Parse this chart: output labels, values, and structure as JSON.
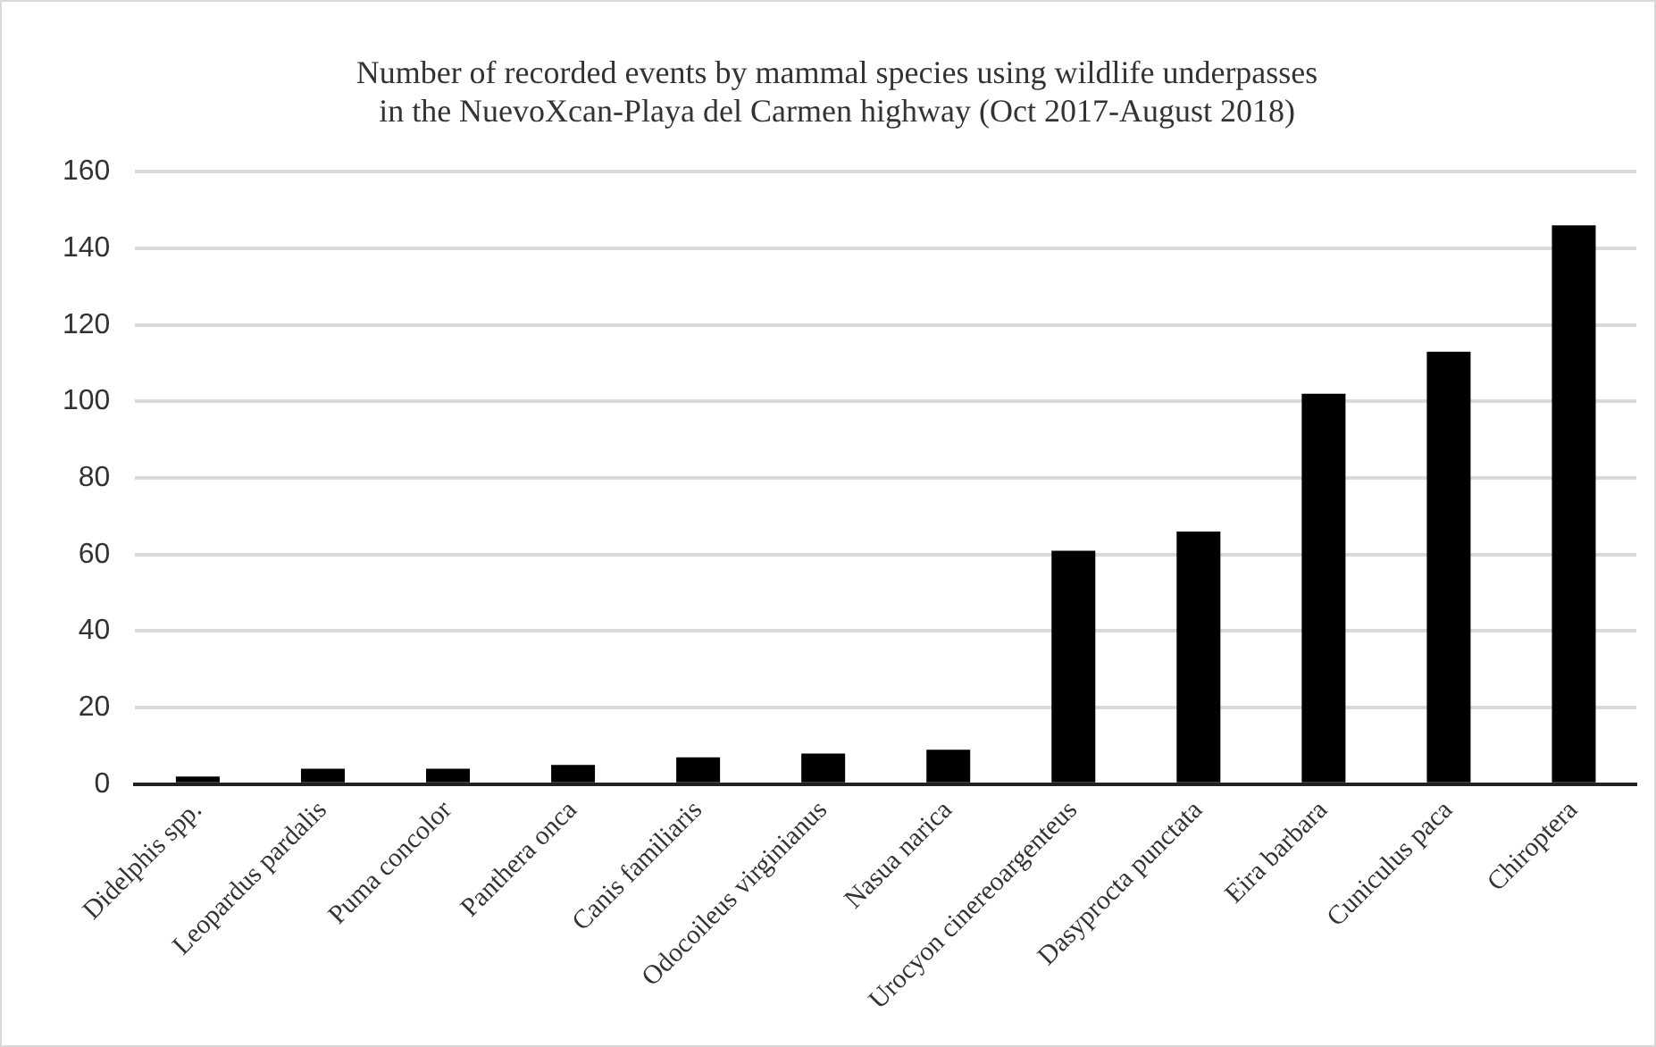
{
  "chart_data": {
    "type": "bar",
    "title": "Number of recorded events by mammal species using wildlife underpasses\nin the NuevoXcan-Playa del Carmen highway (Oct 2017-August 2018)",
    "categories": [
      "Didelphis spp.",
      "Leopardus pardalis",
      "Puma concolor",
      "Panthera onca",
      "Canis familiaris",
      "Odocoileus virginianus",
      "Nasua narica",
      "Urocyon cinereoargenteus",
      "Dasyprocta punctata",
      "Eira barbara",
      "Cuniculus paca",
      "Chiroptera"
    ],
    "values": [
      2,
      4,
      4,
      5,
      7,
      8,
      9,
      61,
      66,
      102,
      113,
      146
    ],
    "color": "#000000",
    "ylim": [
      0,
      160
    ],
    "yticks": [
      0,
      20,
      40,
      60,
      80,
      100,
      120,
      140,
      160
    ],
    "grid": "y",
    "legend": false
  }
}
